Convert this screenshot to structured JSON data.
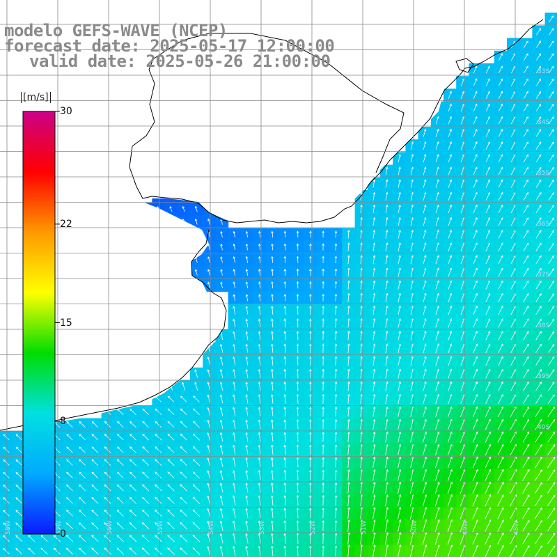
{
  "title": {
    "line1": "modelo GEFS-WAVE (NCEP)",
    "line2": "forecast date: 2025-05-17 12:00:00",
    "line3": "valid date: 2025-05-26 21:00:00"
  },
  "colorbar": {
    "units": "[m/s]",
    "labels": [
      "30",
      "22",
      "15",
      "8",
      "0"
    ],
    "label_values": [
      30,
      22,
      15,
      8,
      0
    ],
    "range": [
      0,
      30
    ],
    "colors": [
      "#0a1aff",
      "#00aaff",
      "#00e0e0",
      "#00dd00",
      "#ffff00",
      "#ff9900",
      "#ff0000",
      "#cc0088"
    ]
  },
  "map": {
    "lat_labels": [
      "33S",
      "34S",
      "35S",
      "36S",
      "37S",
      "38S",
      "39S",
      "40S"
    ],
    "lon_labels": [
      "58W",
      "57W",
      "56W",
      "55W",
      "54W",
      "53W",
      "52W",
      "51W",
      "50W",
      "49W",
      "48W"
    ],
    "land_color": "#ffffff",
    "grid_color": "#888888",
    "arrow_color": "#ffffff"
  }
}
